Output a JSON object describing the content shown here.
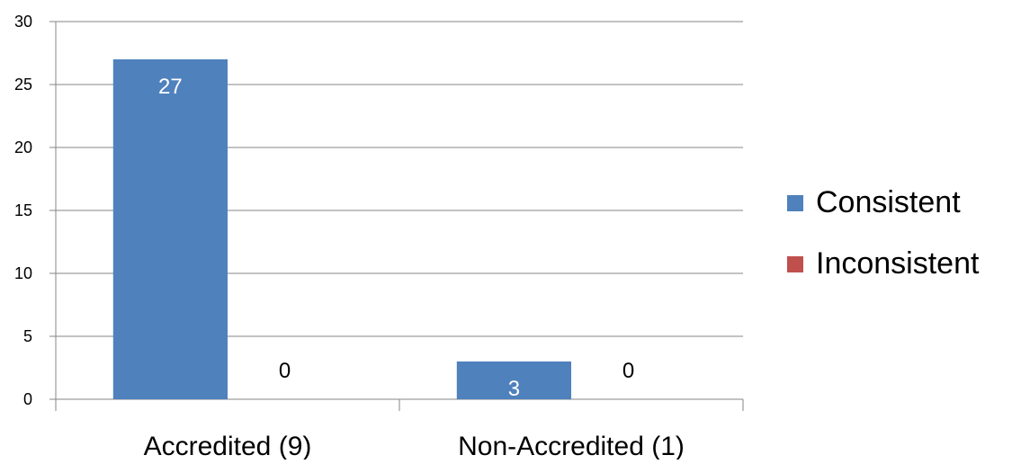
{
  "chart_data": {
    "type": "bar",
    "categories": [
      "Accredited (9)",
      "Non-Accredited (1)"
    ],
    "series": [
      {
        "name": "Consistent",
        "values": [
          27,
          3
        ],
        "color": "#4F81BD",
        "label_color": "#ffffff"
      },
      {
        "name": "Inconsistent",
        "values": [
          0,
          0
        ],
        "color": "#C0504D",
        "label_color": "#000000"
      }
    ],
    "ylim": [
      0,
      30
    ],
    "yticks": [
      "0",
      "5",
      "10",
      "15",
      "20",
      "25",
      "30"
    ],
    "grid": true,
    "legend_position": "right",
    "title": "",
    "xlabel": "",
    "ylabel": ""
  }
}
